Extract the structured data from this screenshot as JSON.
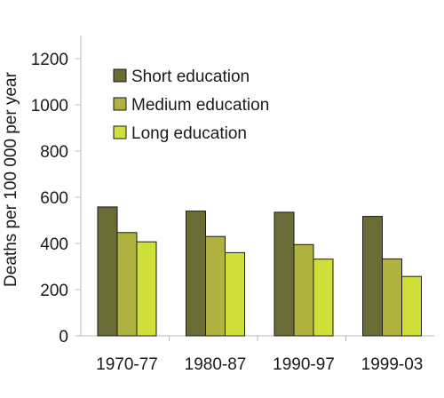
{
  "chart_data": {
    "type": "bar",
    "title": "",
    "xlabel": "",
    "ylabel": "Deaths per 100 000 per year",
    "ylim": [
      0,
      1200
    ],
    "yticks": [
      0,
      200,
      400,
      600,
      800,
      1000,
      1200
    ],
    "categories": [
      "1970-77",
      "1980-87",
      "1990-97",
      "1999-03"
    ],
    "series": [
      {
        "name": "Short education",
        "color": "#6b6b35",
        "values": [
          558,
          540,
          535,
          517
        ]
      },
      {
        "name": "Medium education",
        "color": "#afb23e",
        "values": [
          447,
          430,
          395,
          333
        ]
      },
      {
        "name": "Long education",
        "color": "#cfe03a",
        "values": [
          407,
          360,
          332,
          257
        ]
      }
    ],
    "grid": false,
    "legend_position": "top-left"
  }
}
